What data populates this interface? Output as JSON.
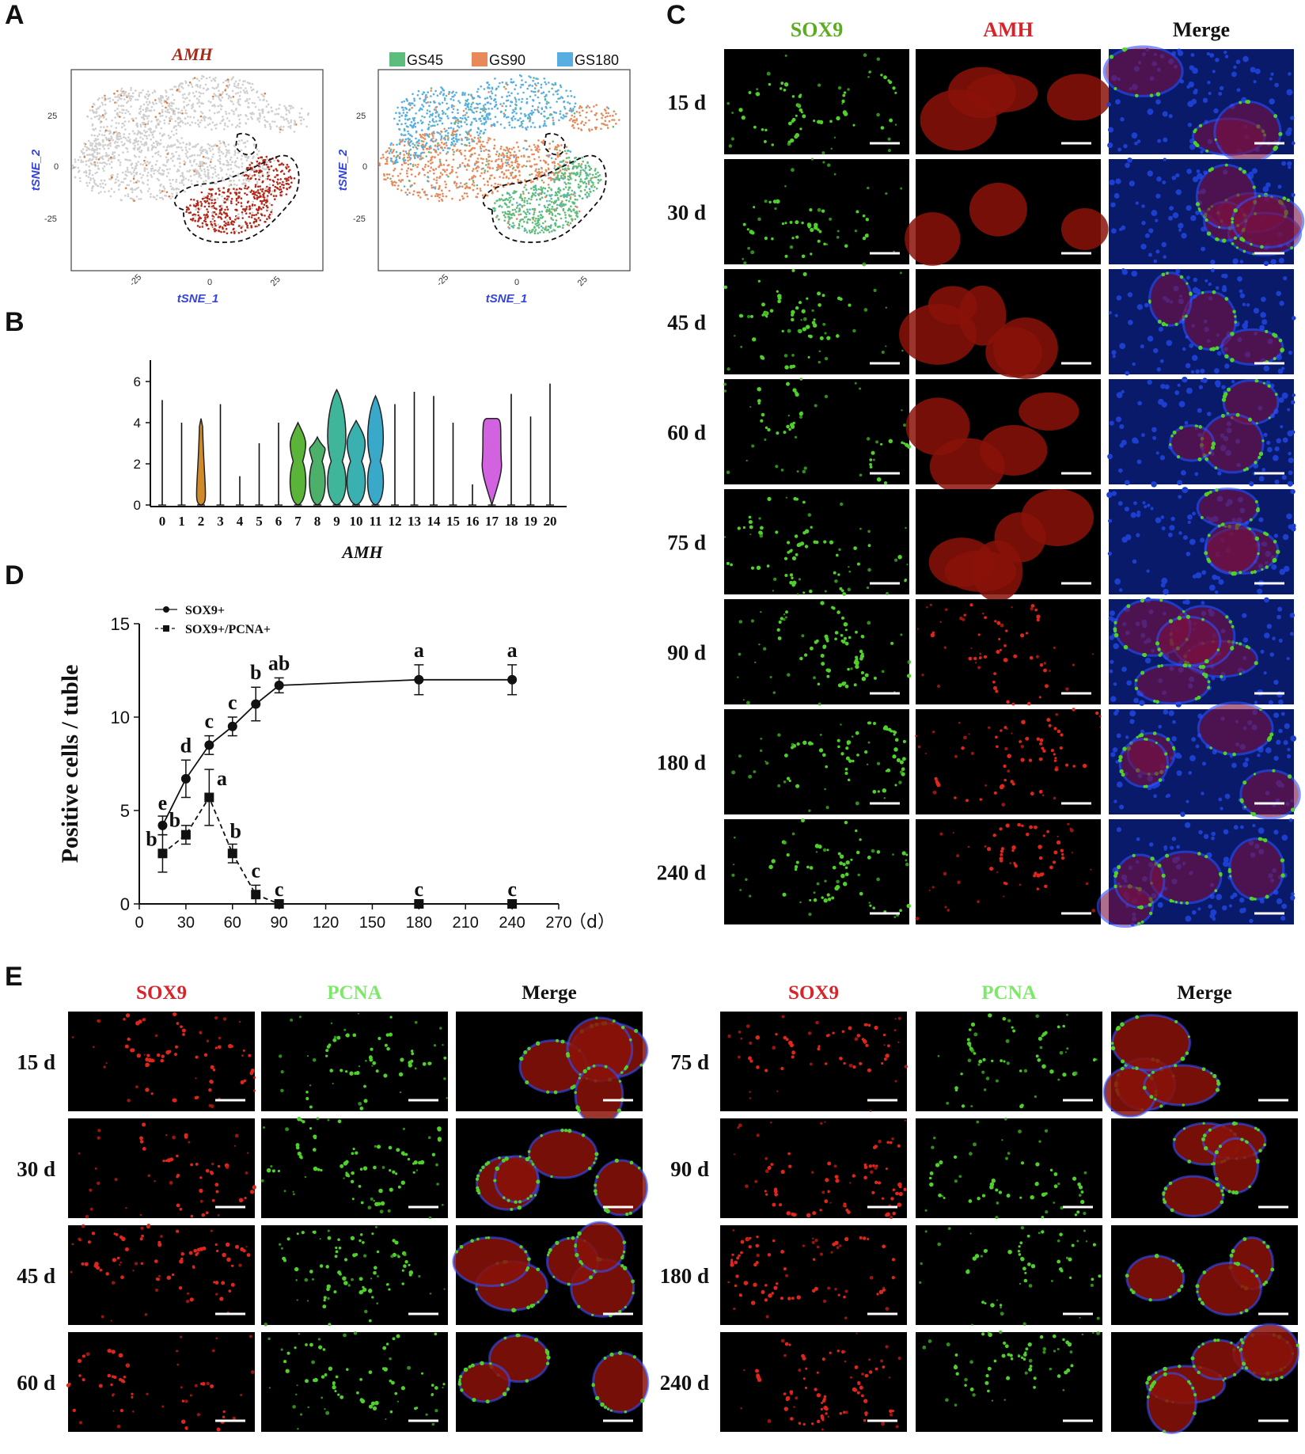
{
  "panels": {
    "a": "A",
    "b": "B",
    "c": "C",
    "d": "D",
    "e": "E"
  },
  "panel_a": {
    "left_title": "AMH",
    "xlabel": "tSNE_1",
    "ylabel": "tSNE_2",
    "ticks_x": [
      "-25",
      "0",
      "25"
    ],
    "ticks_y": [
      "25",
      "0",
      "-25"
    ],
    "legend": [
      {
        "label": "GS45",
        "color": "#5dbd7c"
      },
      {
        "label": "GS90",
        "color": "#e8895a"
      },
      {
        "label": "GS180",
        "color": "#56aee2"
      }
    ],
    "colors": {
      "gray": "#cfcfcf",
      "red": "#b52718",
      "orange": "#e07b3c"
    }
  },
  "panel_b": {
    "xlabel": "AMH",
    "yticks": [
      "0",
      "2",
      "4",
      "6"
    ],
    "categories": [
      "0",
      "1",
      "2",
      "3",
      "4",
      "5",
      "6",
      "7",
      "8",
      "9",
      "10",
      "11",
      "12",
      "13",
      "14",
      "15",
      "16",
      "17",
      "18",
      "19",
      "20"
    ],
    "max_values": [
      5.1,
      4.0,
      4.2,
      4.9,
      1.4,
      3.0,
      4.0,
      4.0,
      3.3,
      5.6,
      4.1,
      5.3,
      4.9,
      5.5,
      5.3,
      4.0,
      1.0,
      4.2,
      5.4,
      4.3,
      5.9
    ],
    "violin_colors": {
      "2": "#d08a2a",
      "7": "#5ab43a",
      "8": "#4db06a",
      "9": "#3fb69a",
      "10": "#3ab0b0",
      "11": "#3aa8c8",
      "17": "#d262e0"
    }
  },
  "panel_c": {
    "headers": [
      {
        "label": "SOX9",
        "color": "#5aad1e"
      },
      {
        "label": "AMH",
        "color": "#d8232a"
      },
      {
        "label": "Merge",
        "color": "#111111"
      }
    ],
    "rows": [
      "15 d",
      "30 d",
      "45 d",
      "60 d",
      "75 d",
      "90 d",
      "180 d",
      "240 d"
    ]
  },
  "chart_data": {
    "type": "line",
    "xlabel": "（d）",
    "ylabel": "Positive cells / tuble",
    "xlim": [
      0,
      270
    ],
    "ylim": [
      0,
      15
    ],
    "xticks": [
      0,
      30,
      60,
      90,
      120,
      150,
      180,
      210,
      240,
      270
    ],
    "yticks": [
      0,
      5,
      10,
      15
    ],
    "legend_position": "top-left",
    "series": [
      {
        "name": "SOX9+",
        "style": "solid-circle",
        "x": [
          15,
          30,
          45,
          60,
          75,
          90,
          180,
          240
        ],
        "y": [
          4.2,
          6.7,
          8.5,
          9.5,
          10.7,
          11.7,
          12.0,
          12.0
        ],
        "err": [
          0.5,
          1.0,
          0.5,
          0.5,
          0.9,
          0.4,
          0.8,
          0.8
        ],
        "labels": [
          "e",
          "d",
          "c",
          "c",
          "b",
          "ab",
          "a",
          "a"
        ]
      },
      {
        "name": "SOX9+/PCNA+",
        "style": "dashed-square",
        "x": [
          15,
          30,
          45,
          60,
          75,
          90,
          180,
          240
        ],
        "y": [
          2.7,
          3.7,
          5.7,
          2.7,
          0.5,
          0.0,
          0.0,
          0.0
        ],
        "err": [
          1.0,
          0.5,
          1.5,
          0.5,
          0.5,
          0.0,
          0.0,
          0.0
        ],
        "labels": [
          "b",
          "b",
          "a",
          "b",
          "c",
          "c",
          "c",
          "c"
        ]
      }
    ]
  },
  "panel_e": {
    "headers": [
      {
        "label": "SOX9",
        "color": "#d8232a"
      },
      {
        "label": "PCNA",
        "color": "#7de86a"
      },
      {
        "label": "Merge",
        "color": "#111111"
      }
    ],
    "left_rows": [
      "15 d",
      "30 d",
      "45 d",
      "60 d"
    ],
    "right_rows": [
      "75 d",
      "90 d",
      "180 d",
      "240 d"
    ]
  }
}
